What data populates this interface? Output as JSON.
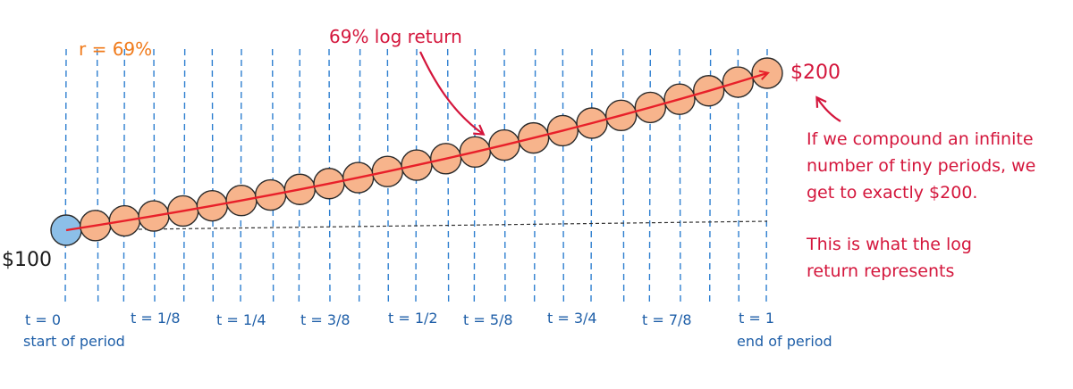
{
  "labels": {
    "rate": "r = 69%",
    "log_return_callout": "69% log return",
    "start_value": "$100",
    "end_value": "$200",
    "explanation_lines": [
      "If we compound an infinite",
      "number of tiny periods, we",
      "get to exactly $200."
    ],
    "meaning_lines": [
      "This is what the log",
      "return represents"
    ],
    "ticks": [
      "t = 0",
      "t = 1/8",
      "t = 1/4",
      "t = 3/8",
      "t = 1/2",
      "t = 5/8",
      "t = 3/4",
      "t = 7/8",
      "t = 1"
    ],
    "start_caption": "start of period",
    "end_caption": "end of period"
  },
  "colors": {
    "period_lines": "#2e7fd0",
    "tick_text": "#1f5fa8",
    "circle_fill": "#f7b48c",
    "start_circle_fill": "#8cbfe8",
    "circle_stroke": "#2a2a2a",
    "growth_line": "#e8202a",
    "annotation_red": "#d4163c",
    "rate_orange": "#f07a1a",
    "baseline": "#333333",
    "value_text": "#1a1a1a"
  },
  "compounding": {
    "periods": 24,
    "start_value": 100,
    "end_value": 200
  }
}
